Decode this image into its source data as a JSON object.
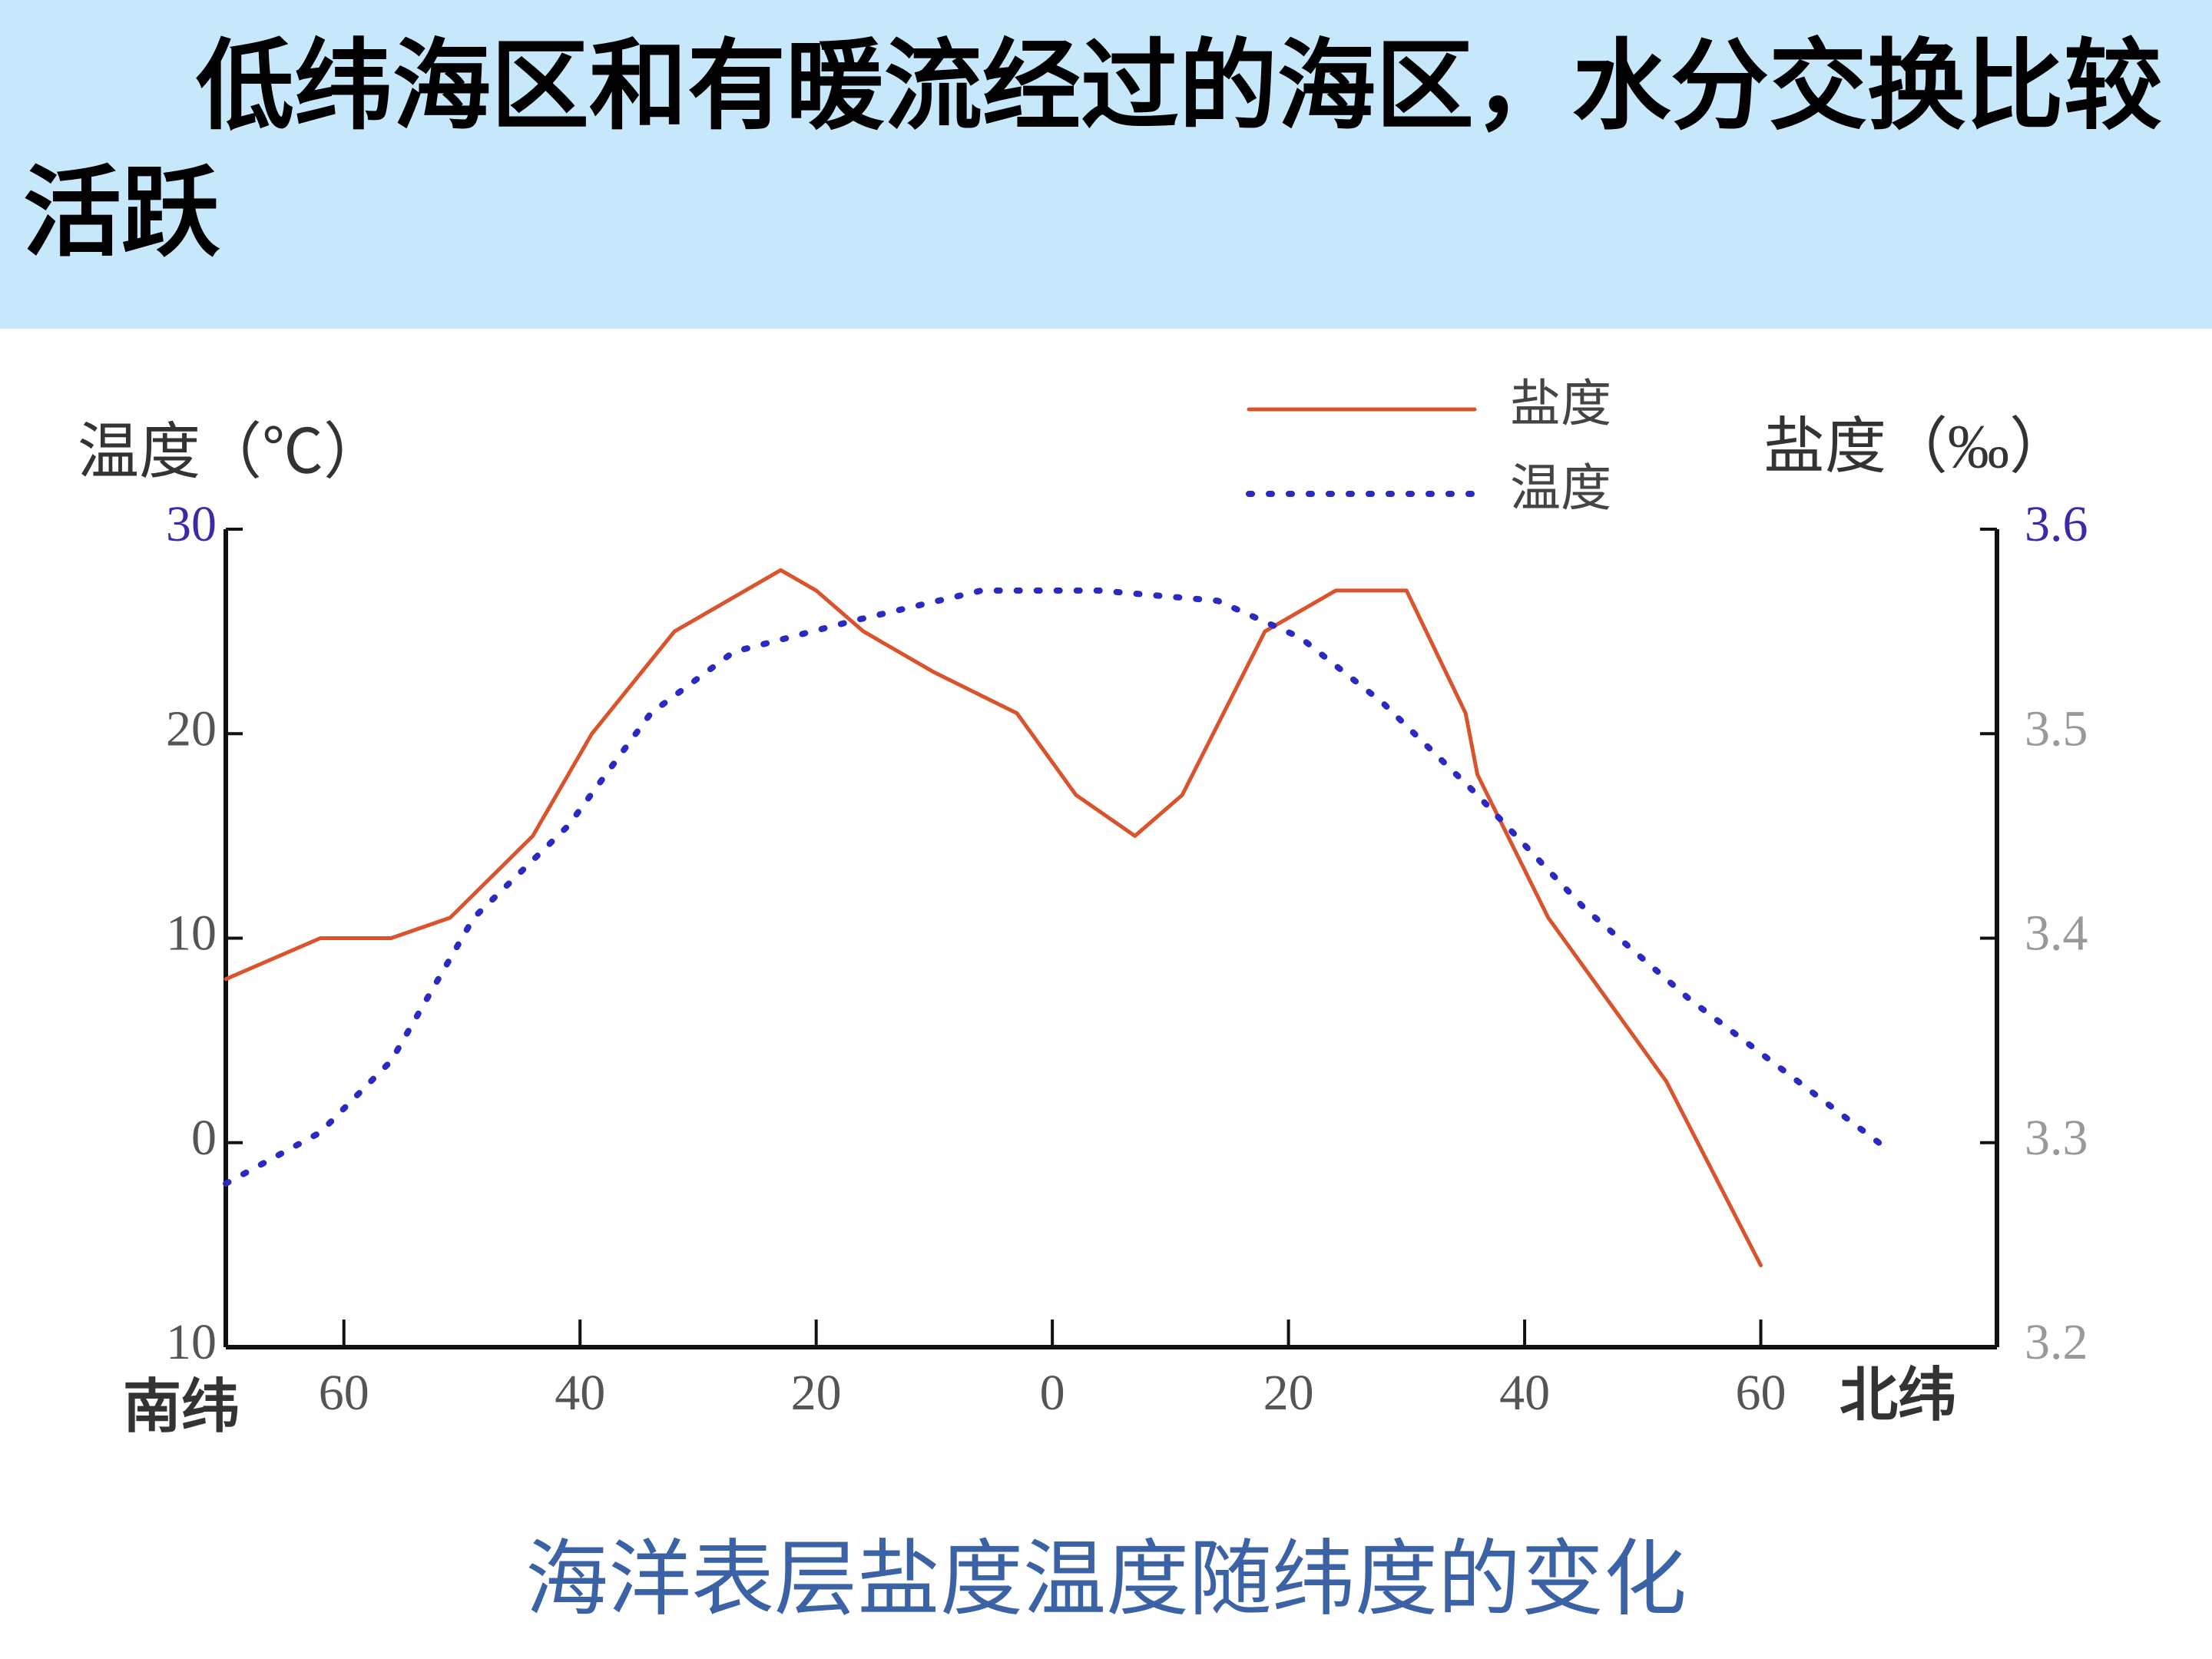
{
  "header": {
    "title": "低纬海区和有暖流经过的海区，水分交换比较活跃"
  },
  "chart_data": {
    "type": "line",
    "caption": "海洋表层盐度温度随纬度的变化",
    "ylabel": "温度（℃）",
    "y2label": "盐度（‰）",
    "xlabel_left": "南纬",
    "xlabel_right": "北纬",
    "xlim": [
      -70,
      80
    ],
    "xticks": [
      {
        "value": -60,
        "label": "60"
      },
      {
        "value": -40,
        "label": "40"
      },
      {
        "value": -20,
        "label": "20"
      },
      0,
      20,
      40,
      60
    ],
    "ylim": [
      -10,
      30
    ],
    "yticks": [
      {
        "value": -10,
        "label": "10"
      },
      0,
      10,
      20,
      30
    ],
    "y2lim": [
      3.2,
      3.6
    ],
    "y2ticks": [
      3.2,
      3.3,
      3.4,
      3.5,
      3.6
    ],
    "legend": "top",
    "series": [
      {
        "name": "盐度",
        "color": "#d9532c",
        "style": "solid",
        "axis": "y2",
        "x": [
          -70,
          -62,
          -56,
          -51,
          -44,
          -39,
          -32,
          -23,
          -20,
          -16,
          -10,
          -3,
          2,
          7,
          11,
          18,
          24,
          30,
          35,
          36,
          42,
          52,
          60
        ],
        "values": [
          3.38,
          3.4,
          3.4,
          3.41,
          3.45,
          3.5,
          3.55,
          3.58,
          3.57,
          3.55,
          3.53,
          3.51,
          3.47,
          3.45,
          3.47,
          3.55,
          3.57,
          3.57,
          3.51,
          3.48,
          3.41,
          3.33,
          3.24
        ]
      },
      {
        "name": "温度",
        "color": "#2a2ac0",
        "style": "dotted",
        "x": [
          -70,
          -62,
          -56,
          -49,
          -41,
          -34,
          -27,
          -17,
          -6,
          4,
          14,
          21,
          28,
          36,
          45,
          54,
          70
        ],
        "values": [
          -2,
          0.5,
          4,
          11,
          15.5,
          21,
          24,
          25.5,
          27,
          27,
          26.5,
          24.7,
          21.5,
          17,
          11.5,
          7,
          0
        ]
      }
    ]
  }
}
